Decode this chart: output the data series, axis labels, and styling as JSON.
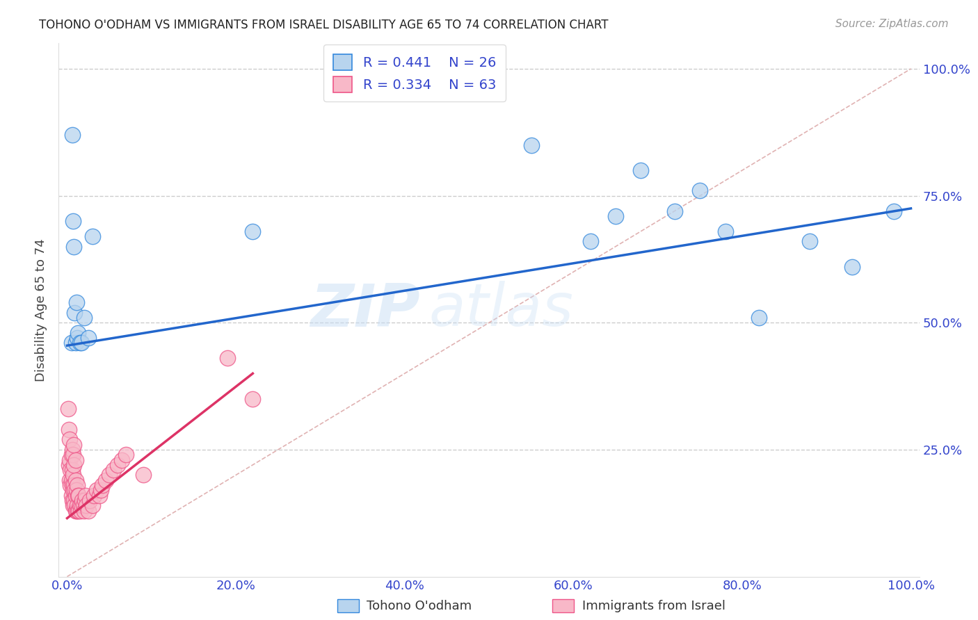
{
  "title": "TOHONO O'ODHAM VS IMMIGRANTS FROM ISRAEL DISABILITY AGE 65 TO 74 CORRELATION CHART",
  "source": "Source: ZipAtlas.com",
  "ylabel": "Disability Age 65 to 74",
  "watermark_zip": "ZIP",
  "watermark_atlas": "atlas",
  "blue_R": 0.441,
  "blue_N": 26,
  "pink_R": 0.334,
  "pink_N": 63,
  "legend_label_blue": "Tohono O'odham",
  "legend_label_pink": "Immigrants from Israel",
  "blue_fill": "#b8d4ee",
  "pink_fill": "#f8b8c8",
  "blue_edge": "#3388dd",
  "pink_edge": "#ee5588",
  "blue_line": "#2266cc",
  "pink_line": "#dd3366",
  "diagonal_color": "#ddaaaa",
  "grid_color": "#cccccc",
  "axis_tick_color": "#3344cc",
  "title_color": "#222222",
  "source_color": "#999999",
  "bg_color": "#ffffff",
  "blue_x": [
    0.005,
    0.006,
    0.007,
    0.008,
    0.009,
    0.01,
    0.011,
    0.012,
    0.013,
    0.015,
    0.017,
    0.02,
    0.025,
    0.03,
    0.22,
    0.55,
    0.62,
    0.65,
    0.68,
    0.72,
    0.75,
    0.78,
    0.82,
    0.88,
    0.93,
    0.98
  ],
  "blue_y": [
    0.46,
    0.87,
    0.7,
    0.65,
    0.52,
    0.46,
    0.54,
    0.47,
    0.48,
    0.46,
    0.46,
    0.51,
    0.47,
    0.67,
    0.68,
    0.85,
    0.66,
    0.71,
    0.8,
    0.72,
    0.76,
    0.68,
    0.51,
    0.66,
    0.61,
    0.72
  ],
  "pink_x": [
    0.001,
    0.002,
    0.002,
    0.003,
    0.003,
    0.003,
    0.004,
    0.004,
    0.005,
    0.005,
    0.005,
    0.006,
    0.006,
    0.006,
    0.006,
    0.007,
    0.007,
    0.007,
    0.007,
    0.008,
    0.008,
    0.008,
    0.008,
    0.009,
    0.009,
    0.01,
    0.01,
    0.01,
    0.01,
    0.011,
    0.011,
    0.012,
    0.012,
    0.013,
    0.013,
    0.014,
    0.014,
    0.015,
    0.016,
    0.017,
    0.018,
    0.019,
    0.02,
    0.021,
    0.022,
    0.023,
    0.025,
    0.027,
    0.03,
    0.032,
    0.035,
    0.038,
    0.04,
    0.042,
    0.046,
    0.05,
    0.055,
    0.06,
    0.065,
    0.07,
    0.09,
    0.19,
    0.22
  ],
  "pink_y": [
    0.33,
    0.22,
    0.29,
    0.19,
    0.23,
    0.27,
    0.18,
    0.21,
    0.16,
    0.19,
    0.24,
    0.15,
    0.18,
    0.21,
    0.25,
    0.14,
    0.17,
    0.2,
    0.24,
    0.15,
    0.18,
    0.22,
    0.26,
    0.14,
    0.17,
    0.13,
    0.16,
    0.19,
    0.23,
    0.13,
    0.17,
    0.14,
    0.18,
    0.13,
    0.16,
    0.13,
    0.16,
    0.14,
    0.13,
    0.14,
    0.15,
    0.14,
    0.13,
    0.15,
    0.16,
    0.14,
    0.13,
    0.15,
    0.14,
    0.16,
    0.17,
    0.16,
    0.17,
    0.18,
    0.19,
    0.2,
    0.21,
    0.22,
    0.23,
    0.24,
    0.2,
    0.43,
    0.35
  ],
  "xlim": [
    -0.01,
    1.01
  ],
  "ylim": [
    0.0,
    1.05
  ],
  "xtick_vals": [
    0.0,
    0.2,
    0.4,
    0.6,
    0.8,
    1.0
  ],
  "xtick_labels": [
    "0.0%",
    "20.0%",
    "40.0%",
    "60.0%",
    "80.0%",
    "100.0%"
  ],
  "ytick_vals": [
    0.25,
    0.5,
    0.75,
    1.0
  ],
  "ytick_labels": [
    "25.0%",
    "50.0%",
    "75.0%",
    "100.0%"
  ],
  "blue_line_x0": 0.0,
  "blue_line_x1": 1.0,
  "blue_line_y0": 0.455,
  "blue_line_y1": 0.725,
  "pink_line_x0": 0.0,
  "pink_line_x1": 0.22,
  "pink_line_y0": 0.115,
  "pink_line_y1": 0.4
}
